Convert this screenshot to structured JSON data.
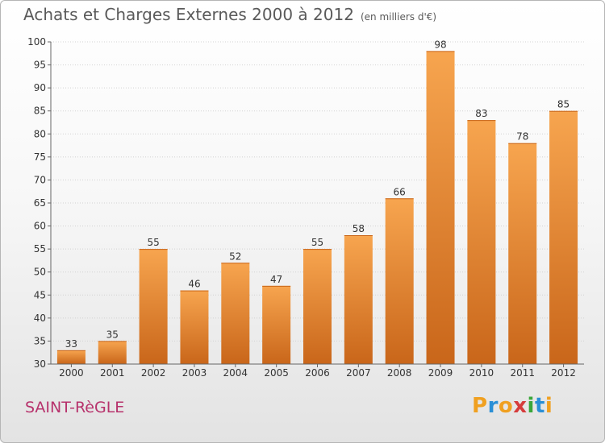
{
  "chart_data": {
    "type": "bar",
    "title": "Achats et Charges Externes 2000 à 2012",
    "subtitle": "(en milliers d'€)",
    "categories": [
      "2000",
      "2001",
      "2002",
      "2003",
      "2004",
      "2005",
      "2006",
      "2007",
      "2008",
      "2009",
      "2010",
      "2011",
      "2012"
    ],
    "values": [
      33,
      35,
      55,
      46,
      52,
      47,
      55,
      58,
      66,
      98,
      83,
      78,
      85
    ],
    "ylim": [
      30,
      100
    ],
    "yticks": [
      30,
      35,
      40,
      45,
      50,
      55,
      60,
      65,
      70,
      75,
      80,
      85,
      90,
      95,
      100
    ],
    "grid": true,
    "legend": "none",
    "bar_color_light": "#f7a54f",
    "bar_color_dark": "#c9661a"
  },
  "footer": {
    "city": "SAINT-RèGLE",
    "logo": "Proxiti",
    "logo_colors": [
      "#f0a020",
      "#2a8fd6",
      "#f0a020",
      "#d63c3c",
      "#3aa63a",
      "#2a8fd6",
      "#f0a020"
    ]
  }
}
